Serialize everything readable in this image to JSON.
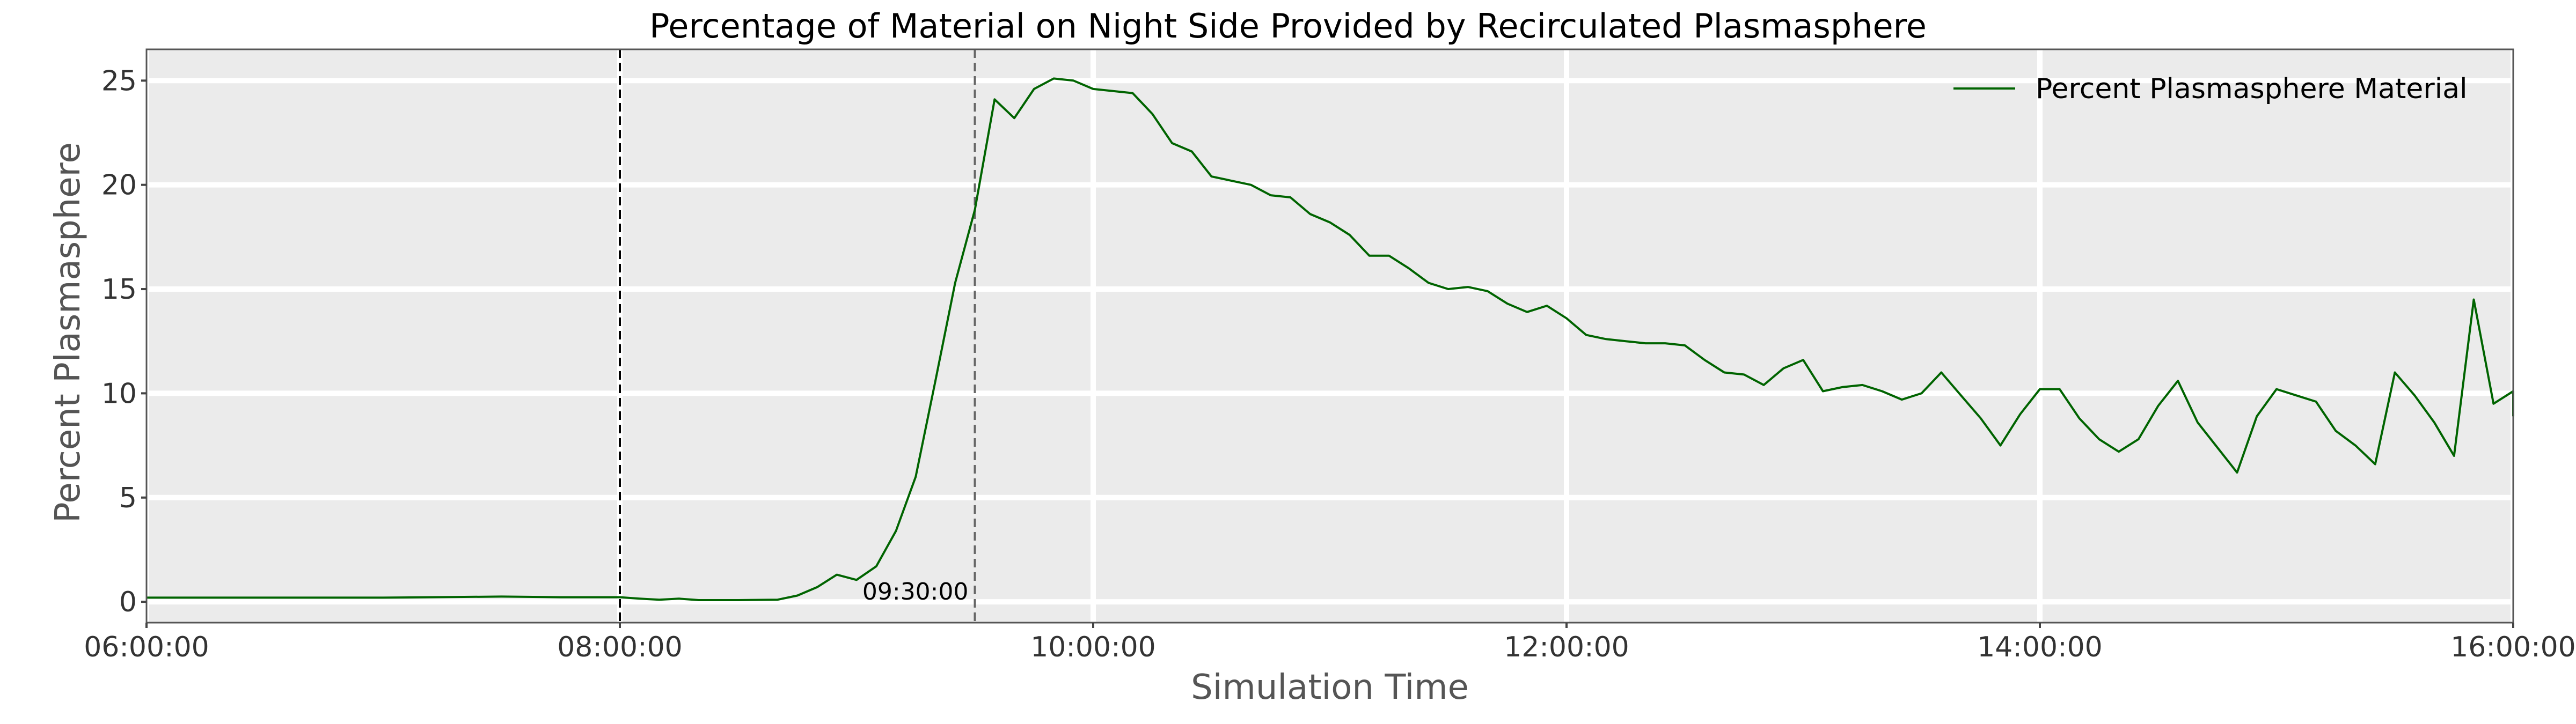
{
  "chart_data": {
    "type": "line",
    "title": "Percentage of Material on Night Side Provided by Recirculated Plasmasphere",
    "xlabel": "Simulation Time",
    "ylabel": "Percent Plasmasphere",
    "xlim": [
      "06:00:00",
      "16:00:00"
    ],
    "ylim": [
      -1,
      26.5
    ],
    "x_ticks": [
      "06:00:00",
      "08:00:00",
      "10:00:00",
      "12:00:00",
      "14:00:00",
      "16:00:00"
    ],
    "y_ticks": [
      0,
      5,
      10,
      15,
      20,
      25
    ],
    "grid": true,
    "legend_position": "upper-right",
    "series": [
      {
        "name": "Percent Plasmasphere Material",
        "color": "#006400",
        "points": [
          [
            "06:00:00",
            0.2
          ],
          [
            "06:30:00",
            0.2
          ],
          [
            "07:00:00",
            0.2
          ],
          [
            "07:30:00",
            0.25
          ],
          [
            "07:45:00",
            0.22
          ],
          [
            "08:00:00",
            0.22
          ],
          [
            "08:05:00",
            0.15
          ],
          [
            "08:10:00",
            0.1
          ],
          [
            "08:15:00",
            0.15
          ],
          [
            "08:20:00",
            0.08
          ],
          [
            "08:30:00",
            0.08
          ],
          [
            "08:40:00",
            0.1
          ],
          [
            "08:45:00",
            0.3
          ],
          [
            "08:50:00",
            0.7
          ],
          [
            "08:55:00",
            1.3
          ],
          [
            "09:00:00",
            1.05
          ],
          [
            "09:05:00",
            1.7
          ],
          [
            "09:10:00",
            3.4
          ],
          [
            "09:15:00",
            6.0
          ],
          [
            "09:20:00",
            10.6
          ],
          [
            "09:25:00",
            15.3
          ],
          [
            "09:30:00",
            18.8
          ],
          [
            "09:35:00",
            24.1
          ],
          [
            "09:40:00",
            23.2
          ],
          [
            "09:45:00",
            24.6
          ],
          [
            "09:50:00",
            25.1
          ],
          [
            "09:55:00",
            25.0
          ],
          [
            "10:00:00",
            24.6
          ],
          [
            "10:05:00",
            24.5
          ],
          [
            "10:10:00",
            24.4
          ],
          [
            "10:15:00",
            23.4
          ],
          [
            "10:20:00",
            22.0
          ],
          [
            "10:25:00",
            21.6
          ],
          [
            "10:30:00",
            20.4
          ],
          [
            "10:35:00",
            20.2
          ],
          [
            "10:40:00",
            20.0
          ],
          [
            "10:45:00",
            19.5
          ],
          [
            "10:50:00",
            19.4
          ],
          [
            "10:55:00",
            18.6
          ],
          [
            "11:00:00",
            18.2
          ],
          [
            "11:05:00",
            17.6
          ],
          [
            "11:10:00",
            16.6
          ],
          [
            "11:15:00",
            16.6
          ],
          [
            "11:20:00",
            16.0
          ],
          [
            "11:25:00",
            15.3
          ],
          [
            "11:30:00",
            15.0
          ],
          [
            "11:35:00",
            15.1
          ],
          [
            "11:40:00",
            14.9
          ],
          [
            "11:45:00",
            14.3
          ],
          [
            "11:50:00",
            13.9
          ],
          [
            "11:55:00",
            14.2
          ],
          [
            "12:00:00",
            13.6
          ],
          [
            "12:05:00",
            12.8
          ],
          [
            "12:10:00",
            12.6
          ],
          [
            "12:15:00",
            12.5
          ],
          [
            "12:20:00",
            12.4
          ],
          [
            "12:25:00",
            12.4
          ],
          [
            "12:30:00",
            12.3
          ],
          [
            "12:35:00",
            11.6
          ],
          [
            "12:40:00",
            11.0
          ],
          [
            "12:45:00",
            10.9
          ],
          [
            "12:50:00",
            10.4
          ],
          [
            "12:55:00",
            11.2
          ],
          [
            "13:00:00",
            11.6
          ],
          [
            "13:05:00",
            10.1
          ],
          [
            "13:10:00",
            10.3
          ],
          [
            "13:15:00",
            10.4
          ],
          [
            "13:20:00",
            10.1
          ],
          [
            "13:25:00",
            9.7
          ],
          [
            "13:30:00",
            10.0
          ],
          [
            "13:35:00",
            11.0
          ],
          [
            "13:40:00",
            9.9
          ],
          [
            "13:45:00",
            8.8
          ],
          [
            "13:50:00",
            7.5
          ],
          [
            "13:55:00",
            9.0
          ],
          [
            "14:00:00",
            10.2
          ],
          [
            "14:05:00",
            10.2
          ],
          [
            "14:10:00",
            8.8
          ],
          [
            "14:15:00",
            7.8
          ],
          [
            "14:20:00",
            7.2
          ],
          [
            "14:25:00",
            7.8
          ],
          [
            "14:30:00",
            9.4
          ],
          [
            "14:35:00",
            10.6
          ],
          [
            "14:40:00",
            8.6
          ],
          [
            "14:45:00",
            7.4
          ],
          [
            "14:50:00",
            6.2
          ],
          [
            "14:55:00",
            8.9
          ],
          [
            "15:00:00",
            10.2
          ],
          [
            "15:05:00",
            9.9
          ],
          [
            "15:10:00",
            9.6
          ],
          [
            "15:15:00",
            8.2
          ],
          [
            "15:20:00",
            7.5
          ],
          [
            "15:25:00",
            6.6
          ],
          [
            "15:30:00",
            11.0
          ],
          [
            "15:35:00",
            9.9
          ],
          [
            "15:40:00",
            8.6
          ],
          [
            "15:45:00",
            7.0
          ],
          [
            "15:50:00",
            14.5
          ],
          [
            "15:55:00",
            9.5
          ],
          [
            "16:00:00",
            10.1
          ],
          [
            "16:00:00",
            8.9
          ]
        ]
      }
    ],
    "vlines": [
      {
        "x": "08:00:00",
        "style": "dashed",
        "color": "#000000"
      },
      {
        "x": "09:30:00",
        "style": "dashed",
        "color": "#666666",
        "label": "09:30:00"
      }
    ]
  }
}
